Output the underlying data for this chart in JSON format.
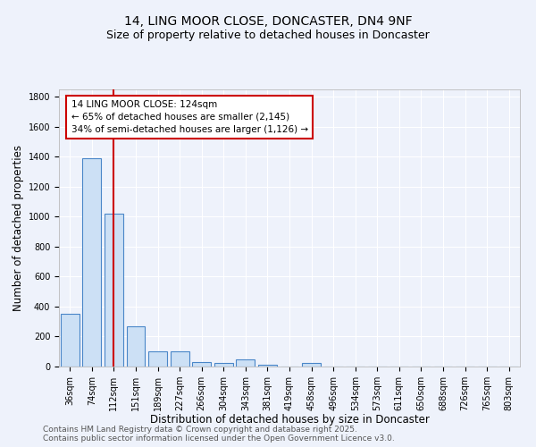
{
  "title_line1": "14, LING MOOR CLOSE, DONCASTER, DN4 9NF",
  "title_line2": "Size of property relative to detached houses in Doncaster",
  "xlabel": "Distribution of detached houses by size in Doncaster",
  "ylabel": "Number of detached properties",
  "categories": [
    "36sqm",
    "74sqm",
    "112sqm",
    "151sqm",
    "189sqm",
    "227sqm",
    "266sqm",
    "304sqm",
    "343sqm",
    "381sqm",
    "419sqm",
    "458sqm",
    "496sqm",
    "534sqm",
    "573sqm",
    "611sqm",
    "650sqm",
    "688sqm",
    "726sqm",
    "765sqm",
    "803sqm"
  ],
  "values": [
    350,
    1390,
    1020,
    270,
    100,
    100,
    30,
    25,
    45,
    10,
    0,
    25,
    0,
    0,
    0,
    0,
    0,
    0,
    0,
    0,
    0
  ],
  "bar_color": "#cce0f5",
  "bar_edge_color": "#4a86c8",
  "vline_x_index": 2,
  "vline_color": "#cc0000",
  "annotation_text": "14 LING MOOR CLOSE: 124sqm\n← 65% of detached houses are smaller (2,145)\n34% of semi-detached houses are larger (1,126) →",
  "annotation_box_facecolor": "#ffffff",
  "annotation_box_edgecolor": "#cc0000",
  "ylim": [
    0,
    1850
  ],
  "yticks": [
    0,
    200,
    400,
    600,
    800,
    1000,
    1200,
    1400,
    1600,
    1800
  ],
  "footer_text": "Contains HM Land Registry data © Crown copyright and database right 2025.\nContains public sector information licensed under the Open Government Licence v3.0.",
  "background_color": "#eef2fb",
  "grid_color": "#ffffff",
  "title_fontsize": 10,
  "subtitle_fontsize": 9,
  "axis_label_fontsize": 8.5,
  "tick_fontsize": 7,
  "annotation_fontsize": 7.5,
  "footer_fontsize": 6.5
}
